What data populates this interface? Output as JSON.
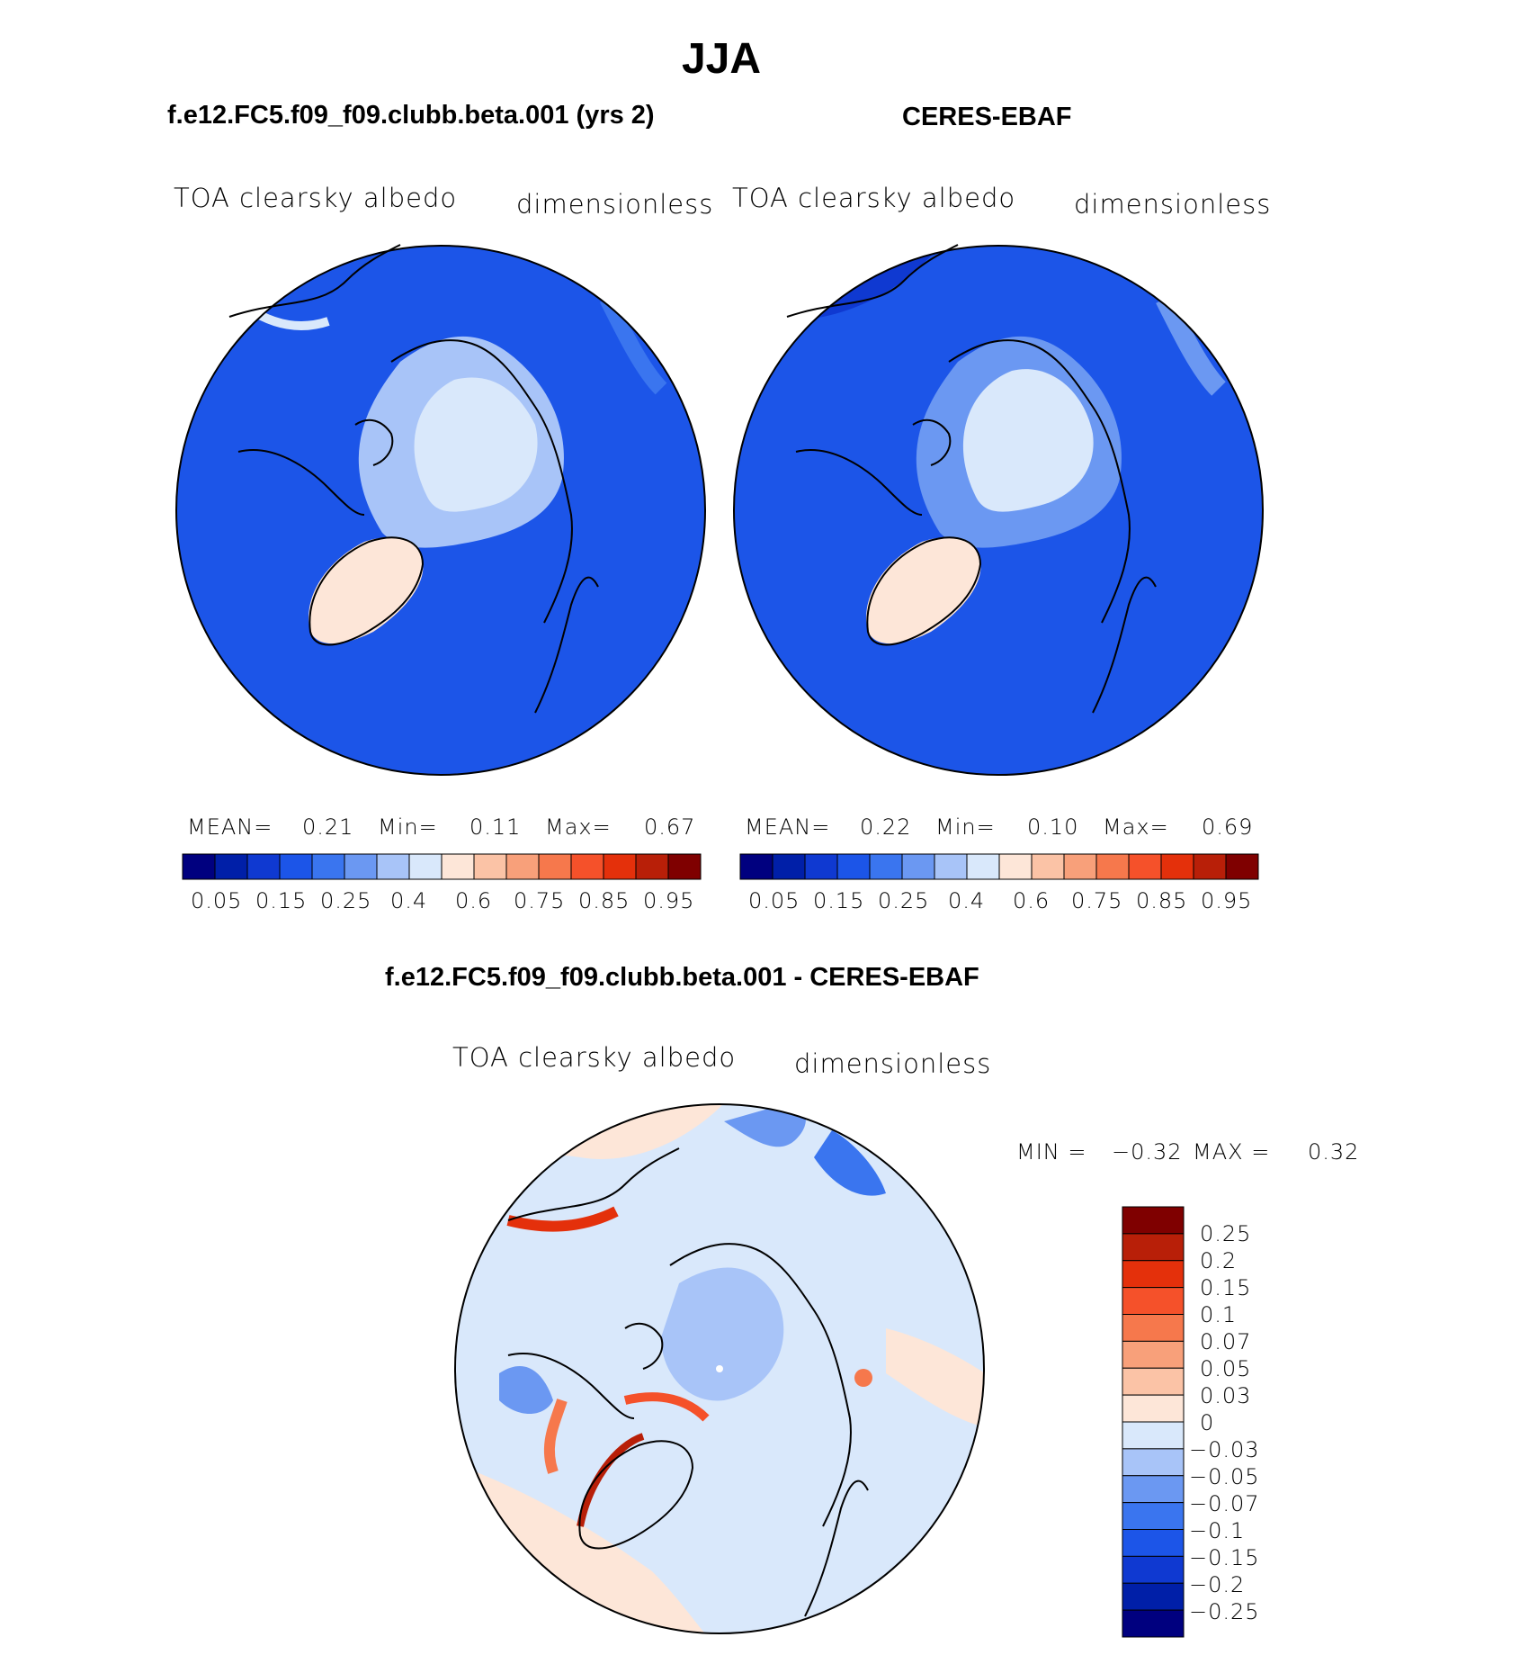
{
  "title": "JJA",
  "panels": [
    {
      "title": "f.e12.FC5.f09_f09.clubb.beta.001 (yrs 2)",
      "variable": "TOA clearsky albedo",
      "units": "dimensionless",
      "stats": {
        "mean_label": "MEAN=",
        "mean": "0.21",
        "min_label": "Min=",
        "min": "0.11",
        "max_label": "Max=",
        "max": "0.67"
      }
    },
    {
      "title": "CERES-EBAF",
      "variable": "TOA clearsky albedo",
      "units": "dimensionless",
      "stats": {
        "mean_label": "MEAN=",
        "mean": "0.22",
        "min_label": "Min=",
        "min": "0.10",
        "max_label": "Max=",
        "max": "0.69"
      }
    }
  ],
  "abs_colorbar": {
    "colors": [
      "#00007f",
      "#001fa8",
      "#0f39d1",
      "#1c55e8",
      "#3a75ef",
      "#6b98f2",
      "#a8c4f8",
      "#d9e8fb",
      "#fde6d8",
      "#fbc3a6",
      "#f8a07a",
      "#f6784c",
      "#f5512a",
      "#e4300b",
      "#b81f08",
      "#7f0000"
    ],
    "ticks": [
      "0.05",
      "0.15",
      "0.25",
      "0.4",
      "0.6",
      "0.75",
      "0.85",
      "0.95"
    ]
  },
  "diff_panel": {
    "title": "f.e12.FC5.f09_f09.clubb.beta.001 - CERES-EBAF",
    "variable": "TOA clearsky albedo",
    "units": "dimensionless",
    "stats": {
      "min_label": "MIN =",
      "min": "−0.32",
      "max_label": "MAX =",
      "max": "0.32"
    }
  },
  "diff_colorbar": {
    "colors": [
      "#7f0000",
      "#b81f08",
      "#e4300b",
      "#f5512a",
      "#f6784c",
      "#f8a07a",
      "#fbc3a6",
      "#fde6d8",
      "#d9e8fb",
      "#a8c4f8",
      "#6b98f2",
      "#3a75ef",
      "#1c55e8",
      "#0f39d1",
      "#001fa8",
      "#00007f"
    ],
    "ticks": [
      "0.25",
      "0.2",
      "0.15",
      "0.1",
      "0.07",
      "0.05",
      "0.03",
      "0",
      "−0.03",
      "−0.05",
      "−0.07",
      "−0.1",
      "−0.15",
      "−0.2",
      "−0.25"
    ]
  }
}
